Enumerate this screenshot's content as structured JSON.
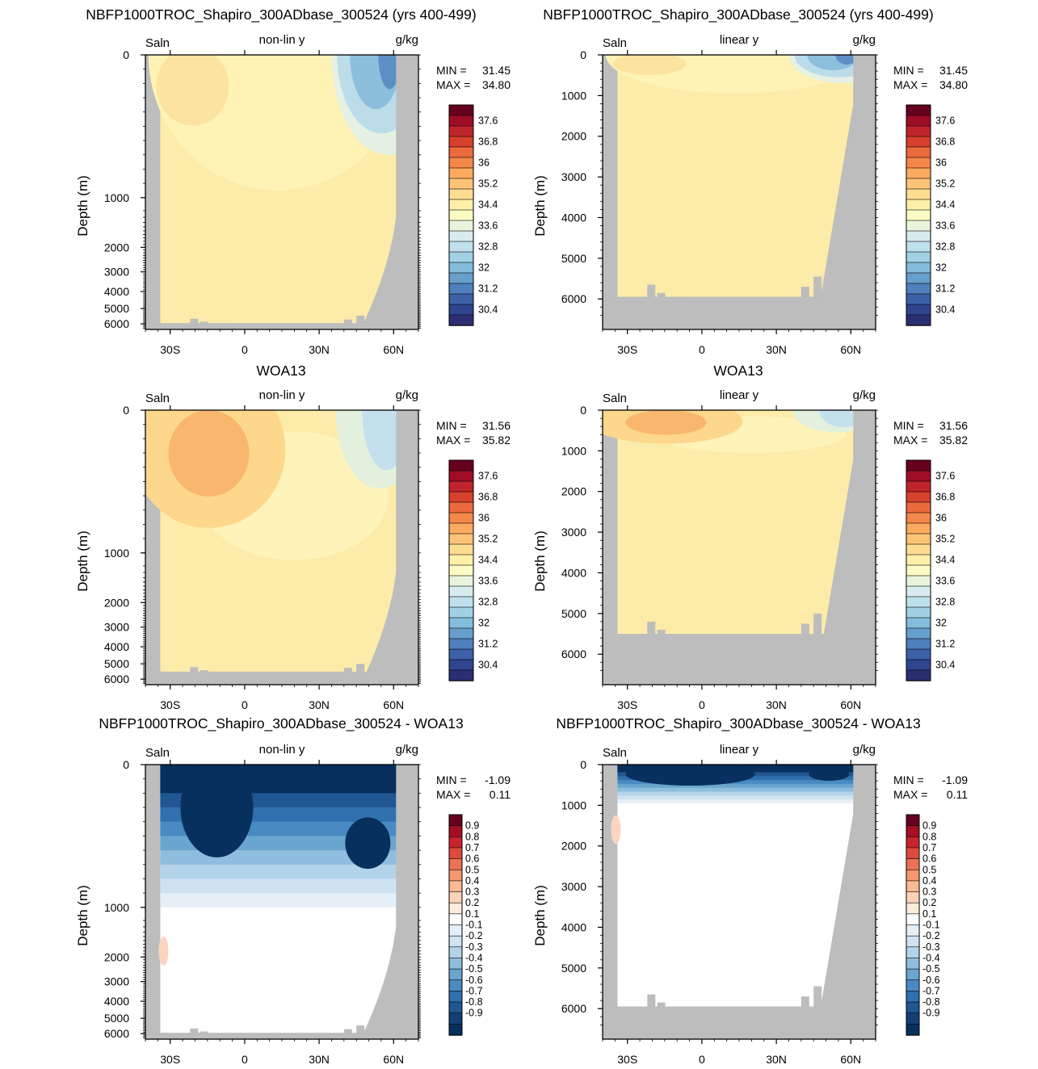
{
  "chart_data": [
    {
      "type": "heatmap",
      "id": "model-nonlin",
      "title": "NBFP1000TROC_Shapiro_300ADbase_300524 (yrs 400-499)",
      "variable": "Saln",
      "subtitle": "non-lin y",
      "units": "g/kg",
      "ylabel": "Depth (m)",
      "yscale": "non-linear",
      "xticks": [
        "30S",
        "0",
        "30N",
        "60N"
      ],
      "xlim": [
        -40,
        70
      ],
      "yticks": [
        "0",
        "1000",
        "2000",
        "3000",
        "4000",
        "5000",
        "6000"
      ],
      "min_label": "MIN = ",
      "min": "31.45",
      "max_label": "MAX = ",
      "max": "34.80",
      "colorbar": "salinity",
      "scheme": "model"
    },
    {
      "type": "heatmap",
      "id": "model-lin",
      "title": "NBFP1000TROC_Shapiro_300ADbase_300524 (yrs 400-499)",
      "variable": "Saln",
      "subtitle": "linear y",
      "units": "g/kg",
      "ylabel": "Depth (m)",
      "yscale": "linear",
      "xticks": [
        "30S",
        "0",
        "30N",
        "60N"
      ],
      "xlim": [
        -40,
        70
      ],
      "yticks": [
        "0",
        "1000",
        "2000",
        "3000",
        "4000",
        "5000",
        "6000"
      ],
      "min_label": "MIN = ",
      "min": "31.45",
      "max_label": "MAX = ",
      "max": "34.80",
      "colorbar": "salinity",
      "scheme": "model"
    },
    {
      "type": "heatmap",
      "id": "woa-nonlin",
      "title": "WOA13",
      "variable": "Saln",
      "subtitle": "non-lin y",
      "units": "g/kg",
      "ylabel": "Depth (m)",
      "yscale": "non-linear",
      "xticks": [
        "30S",
        "0",
        "30N",
        "60N"
      ],
      "xlim": [
        -40,
        70
      ],
      "yticks": [
        "0",
        "1000",
        "2000",
        "3000",
        "4000",
        "5000",
        "6000"
      ],
      "min_label": "MIN = ",
      "min": "31.56",
      "max_label": "MAX = ",
      "max": "35.82",
      "colorbar": "salinity",
      "scheme": "woa"
    },
    {
      "type": "heatmap",
      "id": "woa-lin",
      "title": "WOA13",
      "variable": "Saln",
      "subtitle": "linear y",
      "units": "g/kg",
      "ylabel": "Depth (m)",
      "yscale": "linear",
      "xticks": [
        "30S",
        "0",
        "30N",
        "60N"
      ],
      "xlim": [
        -40,
        70
      ],
      "yticks": [
        "0",
        "1000",
        "2000",
        "3000",
        "4000",
        "5000",
        "6000"
      ],
      "min_label": "MIN = ",
      "min": "31.56",
      "max_label": "MAX = ",
      "max": "35.82",
      "colorbar": "salinity",
      "scheme": "woa"
    },
    {
      "type": "heatmap",
      "id": "diff-nonlin",
      "title": "NBFP1000TROC_Shapiro_300ADbase_300524 - WOA13",
      "variable": "Saln",
      "subtitle": "non-lin y",
      "units": "g/kg",
      "ylabel": "Depth (m)",
      "yscale": "non-linear",
      "xticks": [
        "30S",
        "0",
        "30N",
        "60N"
      ],
      "xlim": [
        -40,
        70
      ],
      "yticks": [
        "0",
        "1000",
        "2000",
        "3000",
        "4000",
        "5000",
        "6000"
      ],
      "min_label": "MIN = ",
      "min": "-1.09",
      "max_label": "MAX = ",
      "max": "0.11",
      "colorbar": "difference",
      "scheme": "diff"
    },
    {
      "type": "heatmap",
      "id": "diff-lin",
      "title": "NBFP1000TROC_Shapiro_300ADbase_300524 - WOA13",
      "variable": "Saln",
      "subtitle": "linear y",
      "units": "g/kg",
      "ylabel": "Depth (m)",
      "yscale": "linear",
      "xticks": [
        "30S",
        "0",
        "30N",
        "60N"
      ],
      "xlim": [
        -40,
        70
      ],
      "yticks": [
        "0",
        "1000",
        "2000",
        "3000",
        "4000",
        "5000",
        "6000"
      ],
      "min_label": "MIN = ",
      "min": "-1.09",
      "max_label": "MAX = ",
      "max": "0.11",
      "colorbar": "difference",
      "scheme": "diff"
    }
  ],
  "colorbars": {
    "salinity": {
      "labels": [
        "37.6",
        "36.8",
        "36",
        "35.2",
        "34.4",
        "33.6",
        "32.8",
        "32",
        "31.2",
        "30.4"
      ],
      "colors": [
        "#67001f",
        "#9e0d26",
        "#c0242b",
        "#d6402c",
        "#ea6a3c",
        "#f4874a",
        "#fbaa60",
        "#fdc478",
        "#fedd91",
        "#fff0a9",
        "#fbfbc4",
        "#eaf4dc",
        "#d8ecf0",
        "#bfe1ed",
        "#a2d1e5",
        "#84bcdb",
        "#679fcc",
        "#4f80bd",
        "#3d61a9",
        "#2f4590",
        "#2b2f72"
      ]
    },
    "difference": {
      "labels": [
        "0.9",
        "0.8",
        "0.7",
        "0.6",
        "0.5",
        "0.4",
        "0.3",
        "0.2",
        "0.1",
        "-0.1",
        "-0.2",
        "-0.3",
        "-0.4",
        "-0.5",
        "-0.6",
        "-0.7",
        "-0.8",
        "-0.9"
      ],
      "colors": [
        "#67001f",
        "#a50f25",
        "#c8242d",
        "#dc4b3e",
        "#eb7255",
        "#f5976f",
        "#fab893",
        "#fdd3b8",
        "#fdeadb",
        "#ffffff",
        "#e5eff8",
        "#cfe2f1",
        "#b3d3e9",
        "#8fbddd",
        "#6aa5d0",
        "#4a8ac2",
        "#3170ae",
        "#205793",
        "#143f77",
        "#08305e"
      ]
    }
  }
}
